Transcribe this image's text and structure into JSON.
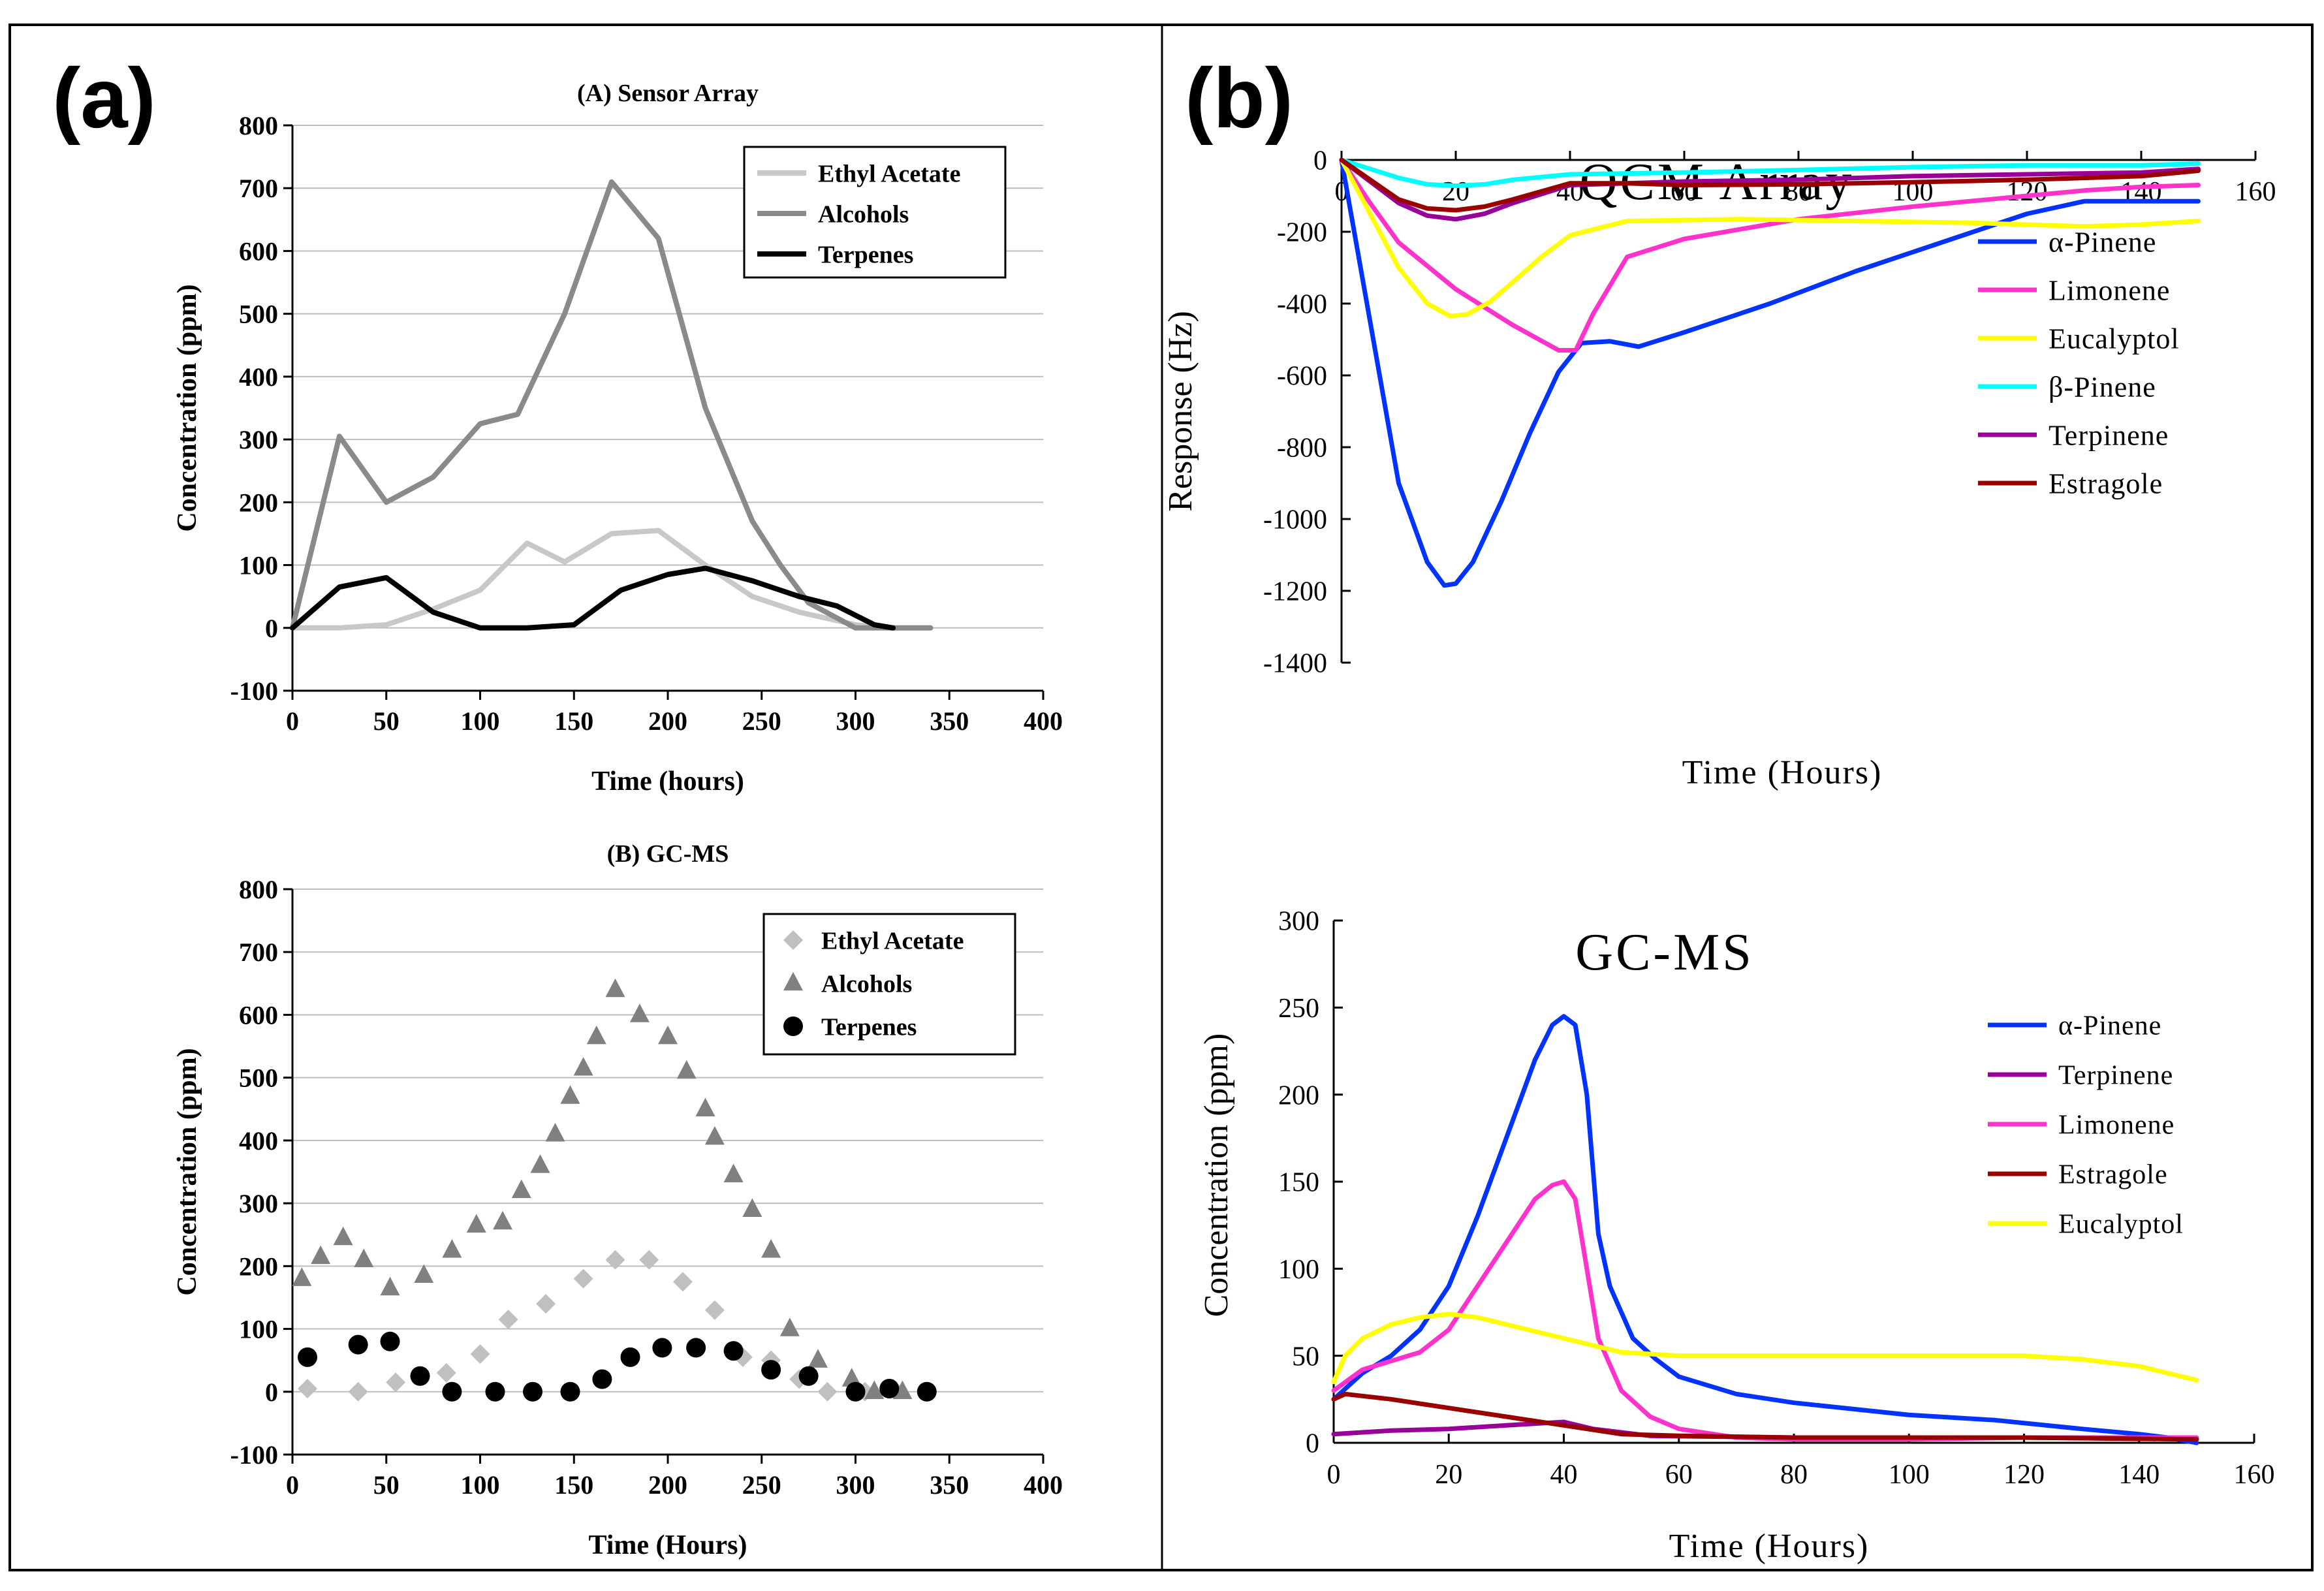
{
  "panels": {
    "a_label": "(a)",
    "b_label": "(b)"
  },
  "chart_data": [
    {
      "id": "sensor_array",
      "type": "line",
      "title": "(A) Sensor Array",
      "xlabel": "Time (hours)",
      "ylabel": "Concentration (ppm)",
      "xlim": [
        0,
        400
      ],
      "ylim": [
        -100,
        800
      ],
      "xticks": [
        0,
        50,
        100,
        150,
        200,
        250,
        300,
        350,
        400
      ],
      "yticks": [
        -100,
        0,
        100,
        200,
        300,
        400,
        500,
        600,
        700,
        800
      ],
      "grid": true,
      "legend_position": "top-right",
      "series": [
        {
          "name": "Ethyl Acetate",
          "color": "#c8c8c8",
          "x": [
            0,
            25,
            50,
            75,
            100,
            125,
            145,
            170,
            195,
            220,
            245,
            270,
            300,
            320,
            340
          ],
          "y": [
            0,
            0,
            5,
            30,
            60,
            135,
            105,
            150,
            155,
            100,
            50,
            25,
            5,
            0,
            0
          ]
        },
        {
          "name": "Alcohols",
          "color": "#8a8a8a",
          "x": [
            0,
            25,
            50,
            75,
            100,
            120,
            145,
            170,
            195,
            220,
            245,
            260,
            275,
            300,
            320,
            340
          ],
          "y": [
            0,
            305,
            200,
            240,
            325,
            340,
            500,
            710,
            620,
            350,
            170,
            100,
            40,
            0,
            0,
            0
          ]
        },
        {
          "name": "Terpenes",
          "color": "#000000",
          "x": [
            0,
            25,
            50,
            75,
            100,
            125,
            150,
            175,
            200,
            220,
            245,
            270,
            290,
            310,
            320
          ],
          "y": [
            0,
            65,
            80,
            25,
            0,
            0,
            5,
            60,
            85,
            95,
            75,
            50,
            35,
            5,
            0
          ]
        }
      ]
    },
    {
      "id": "gcms_a",
      "type": "scatter",
      "title": "(B) GC-MS",
      "xlabel": "Time (Hours)",
      "ylabel": "Concentration (ppm)",
      "xlim": [
        0,
        400
      ],
      "ylim": [
        -100,
        800
      ],
      "xticks": [
        0,
        50,
        100,
        150,
        200,
        250,
        300,
        350,
        400
      ],
      "yticks": [
        -100,
        0,
        100,
        200,
        300,
        400,
        500,
        600,
        700,
        800
      ],
      "grid": true,
      "legend_position": "top-right",
      "series": [
        {
          "name": "Ethyl Acetate",
          "color": "#c0c0c0",
          "marker": "diamond",
          "x": [
            8,
            35,
            55,
            82,
            100,
            115,
            135,
            155,
            172,
            190,
            208,
            225,
            240,
            255,
            270,
            285,
            305,
            320
          ],
          "y": [
            5,
            0,
            15,
            30,
            60,
            115,
            140,
            180,
            210,
            210,
            175,
            130,
            55,
            50,
            20,
            0,
            0,
            5
          ]
        },
        {
          "name": "Alcohols",
          "color": "#808080",
          "marker": "triangle",
          "x": [
            5,
            15,
            27,
            38,
            52,
            70,
            85,
            98,
            112,
            122,
            132,
            140,
            148,
            155,
            162,
            172,
            185,
            200,
            210,
            220,
            225,
            235,
            245,
            255,
            265,
            280,
            298,
            310,
            325
          ],
          "y": [
            180,
            215,
            245,
            210,
            165,
            185,
            225,
            265,
            270,
            320,
            360,
            410,
            470,
            515,
            565,
            640,
            600,
            565,
            510,
            450,
            405,
            345,
            290,
            225,
            100,
            50,
            20,
            0,
            0
          ]
        },
        {
          "name": "Terpenes",
          "color": "#000000",
          "marker": "circle",
          "x": [
            8,
            35,
            52,
            68,
            85,
            108,
            128,
            148,
            165,
            180,
            197,
            215,
            235,
            255,
            275,
            300,
            318,
            338
          ],
          "y": [
            55,
            75,
            80,
            25,
            0,
            0,
            0,
            0,
            20,
            55,
            70,
            70,
            65,
            35,
            25,
            0,
            5,
            0
          ]
        }
      ]
    },
    {
      "id": "qcm_array",
      "type": "line",
      "title": "QCM Array",
      "xlabel": "Time (Hours)",
      "ylabel": "Response (Hz)",
      "xlim": [
        0,
        160
      ],
      "ylim": [
        -1400,
        0
      ],
      "y_inverted": true,
      "xticks": [
        0,
        20,
        40,
        60,
        80,
        100,
        120,
        140,
        160
      ],
      "yticks": [
        -1400,
        -1200,
        -1000,
        -800,
        -600,
        -400,
        -200,
        0
      ],
      "grid": false,
      "legend_position": "top-right",
      "series": [
        {
          "name": "α-Pinene",
          "color": "#0033ff",
          "x": [
            0,
            5,
            10,
            15,
            18,
            20,
            23,
            28,
            33,
            38,
            42,
            47,
            52,
            60,
            75,
            90,
            105,
            120,
            130,
            135,
            140,
            145,
            150
          ],
          "y": [
            0,
            -450,
            -900,
            -1120,
            -1185,
            -1180,
            -1120,
            -950,
            -760,
            -590,
            -510,
            -505,
            -520,
            -480,
            -400,
            -310,
            -230,
            -150,
            -115,
            -115,
            -115,
            -115,
            -115
          ]
        },
        {
          "name": "Limonene",
          "color": "#ff33cc",
          "x": [
            0,
            5,
            10,
            20,
            30,
            38,
            41,
            44,
            50,
            60,
            80,
            100,
            120,
            130,
            140,
            150
          ],
          "y": [
            0,
            -120,
            -230,
            -360,
            -460,
            -530,
            -530,
            -430,
            -270,
            -220,
            -165,
            -130,
            -100,
            -85,
            -75,
            -70
          ]
        },
        {
          "name": "Eucalyptol",
          "color": "#ffff00",
          "x": [
            0,
            5,
            10,
            15,
            19,
            22,
            26,
            30,
            35,
            40,
            50,
            70,
            90,
            110,
            130,
            140,
            150
          ],
          "y": [
            0,
            -150,
            -300,
            -400,
            -435,
            -430,
            -395,
            -340,
            -270,
            -210,
            -170,
            -165,
            -170,
            -175,
            -185,
            -180,
            -170
          ]
        },
        {
          "name": "β-Pinene",
          "color": "#00ffff",
          "x": [
            0,
            5,
            10,
            15,
            20,
            25,
            30,
            40,
            60,
            80,
            100,
            120,
            140,
            150
          ],
          "y": [
            0,
            -25,
            -50,
            -68,
            -72,
            -68,
            -55,
            -40,
            -35,
            -28,
            -20,
            -15,
            -15,
            -10
          ]
        },
        {
          "name": "Terpinene",
          "color": "#990099",
          "x": [
            0,
            5,
            10,
            15,
            20,
            25,
            30,
            40,
            50,
            60,
            80,
            100,
            120,
            140,
            150
          ],
          "y": [
            0,
            -60,
            -120,
            -155,
            -165,
            -150,
            -120,
            -70,
            -65,
            -60,
            -55,
            -45,
            -40,
            -35,
            -25
          ]
        },
        {
          "name": "Estragole",
          "color": "#990000",
          "x": [
            0,
            5,
            10,
            15,
            20,
            25,
            30,
            40,
            50,
            60,
            80,
            100,
            120,
            140,
            150
          ],
          "y": [
            0,
            -55,
            -110,
            -135,
            -140,
            -130,
            -110,
            -65,
            -65,
            -70,
            -68,
            -62,
            -55,
            -45,
            -30
          ]
        }
      ]
    },
    {
      "id": "gcms_b",
      "type": "line",
      "title": "GC-MS",
      "xlabel": "Time (Hours)",
      "ylabel": "Concentration (ppm)",
      "xlim": [
        0,
        160
      ],
      "ylim": [
        0,
        300
      ],
      "xticks": [
        0,
        20,
        40,
        60,
        80,
        100,
        120,
        140,
        160
      ],
      "yticks": [
        0,
        50,
        100,
        150,
        200,
        250,
        300
      ],
      "grid": false,
      "legend_position": "top-right",
      "series": [
        {
          "name": "α-Pinene",
          "color": "#0033ff",
          "x": [
            0,
            5,
            10,
            15,
            20,
            25,
            30,
            35,
            38,
            40,
            42,
            44,
            46,
            48,
            52,
            56,
            60,
            70,
            80,
            100,
            115,
            130,
            140,
            145,
            150
          ],
          "y": [
            25,
            40,
            50,
            65,
            90,
            130,
            175,
            220,
            240,
            245,
            240,
            200,
            120,
            90,
            60,
            48,
            38,
            28,
            23,
            16,
            13,
            8,
            5,
            3,
            0
          ]
        },
        {
          "name": "Terpinene",
          "color": "#990099",
          "x": [
            0,
            5,
            10,
            20,
            30,
            40,
            45,
            55,
            80,
            100,
            120,
            150
          ],
          "y": [
            5,
            6,
            7,
            8,
            10,
            12,
            8,
            4,
            3,
            3,
            3,
            2
          ]
        },
        {
          "name": "Limonene",
          "color": "#ff33cc",
          "x": [
            0,
            5,
            10,
            15,
            20,
            25,
            30,
            35,
            38,
            40,
            42,
            44,
            46,
            50,
            55,
            60,
            70,
            80,
            100,
            120,
            150
          ],
          "y": [
            30,
            42,
            47,
            52,
            65,
            90,
            115,
            140,
            148,
            150,
            140,
            100,
            60,
            30,
            15,
            8,
            3,
            2,
            2,
            3,
            3
          ]
        },
        {
          "name": "Estragole",
          "color": "#990000",
          "x": [
            0,
            2,
            10,
            20,
            30,
            40,
            50,
            60,
            80,
            100,
            120,
            150
          ],
          "y": [
            25,
            28,
            25,
            20,
            15,
            10,
            5,
            4,
            3,
            3,
            3,
            2
          ]
        },
        {
          "name": "Eucalyptol",
          "color": "#ffff00",
          "x": [
            0,
            2,
            5,
            10,
            15,
            20,
            25,
            30,
            40,
            50,
            60,
            80,
            100,
            120,
            130,
            140,
            150
          ],
          "y": [
            35,
            50,
            60,
            68,
            72,
            74,
            72,
            68,
            60,
            52,
            50,
            50,
            50,
            50,
            48,
            44,
            36
          ]
        }
      ]
    }
  ]
}
